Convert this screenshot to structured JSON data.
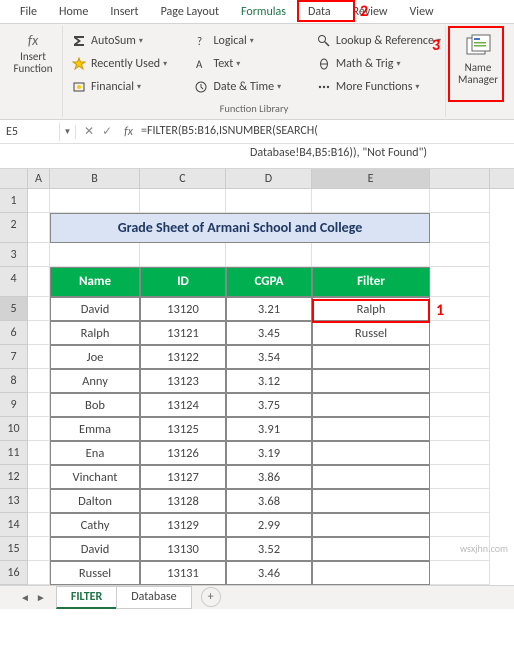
{
  "ribbon_tabs": [
    "File",
    "Home",
    "Insert",
    "Page Layout",
    "Formulas",
    "Data",
    "Review",
    "View"
  ],
  "active_tab": "Formulas",
  "ribbon": {
    "insert_function": "Insert\nFunction",
    "library": [
      {
        "label": "AutoSum",
        "icon": "sigma"
      },
      {
        "label": "Logical",
        "icon": "q"
      },
      {
        "label": "Lookup & Reference",
        "icon": "lookup"
      },
      {
        "label": "Recently Used",
        "icon": "star"
      },
      {
        "label": "Text",
        "icon": "text"
      },
      {
        "label": "Math & Trig",
        "icon": "theta"
      },
      {
        "label": "Financial",
        "icon": "fin"
      },
      {
        "label": "Date & Time",
        "icon": "clock"
      },
      {
        "label": "More Functions",
        "icon": "more"
      }
    ],
    "library_group_label": "Function Library",
    "name_manager": "Name\nManager"
  },
  "namebox": "E5",
  "formula": "=FILTER(B5:B16,ISNUMBER(SEARCH(Database!B4,B5:B16)), \"Not Found\")",
  "columns": [
    "A",
    "B",
    "C",
    "D",
    "E"
  ],
  "col_widths": {
    "A": 22,
    "B": 90,
    "C": 86,
    "D": 86,
    "E": 118
  },
  "title": "Grade Sheet of Armani School and College",
  "headers": [
    "Name",
    "ID",
    "CGPA",
    "Filter"
  ],
  "rows": [
    {
      "n": 5,
      "name": "David",
      "id": "13120",
      "cgpa": "3.21",
      "filter": "Ralph"
    },
    {
      "n": 6,
      "name": "Ralph",
      "id": "13121",
      "cgpa": "3.45",
      "filter": "Russel"
    },
    {
      "n": 7,
      "name": "Joe",
      "id": "13122",
      "cgpa": "3.54",
      "filter": ""
    },
    {
      "n": 8,
      "name": "Anny",
      "id": "13123",
      "cgpa": "3.12",
      "filter": ""
    },
    {
      "n": 9,
      "name": "Bob",
      "id": "13124",
      "cgpa": "3.75",
      "filter": ""
    },
    {
      "n": 10,
      "name": "Emma",
      "id": "13125",
      "cgpa": "3.91",
      "filter": ""
    },
    {
      "n": 11,
      "name": "Ena",
      "id": "13126",
      "cgpa": "3.19",
      "filter": ""
    },
    {
      "n": 12,
      "name": "Vinchant",
      "id": "13127",
      "cgpa": "3.86",
      "filter": ""
    },
    {
      "n": 13,
      "name": "Dalton",
      "id": "13128",
      "cgpa": "3.68",
      "filter": ""
    },
    {
      "n": 14,
      "name": "Cathy",
      "id": "13129",
      "cgpa": "2.99",
      "filter": ""
    },
    {
      "n": 15,
      "name": "David",
      "id": "13130",
      "cgpa": "3.52",
      "filter": ""
    },
    {
      "n": 16,
      "name": "Russel",
      "id": "13131",
      "cgpa": "3.46",
      "filter": ""
    }
  ],
  "sheet_tabs": [
    "FILTER",
    "Database"
  ],
  "active_sheet": "FILTER",
  "annotations": {
    "box1": {
      "desc": "E5 cell Ralph"
    },
    "box2": {
      "desc": "Formulas tab"
    },
    "box3": {
      "desc": "Name Manager button"
    }
  },
  "colors": {
    "header_bg": "#00b050",
    "header_fg": "#ffffff",
    "title_bg": "#dae3f3",
    "title_fg": "#1f3864",
    "red": "#ff0000",
    "ribbon_bg": "#f3f2f1",
    "green": "#217346"
  },
  "watermark": "wsxjhn.com"
}
